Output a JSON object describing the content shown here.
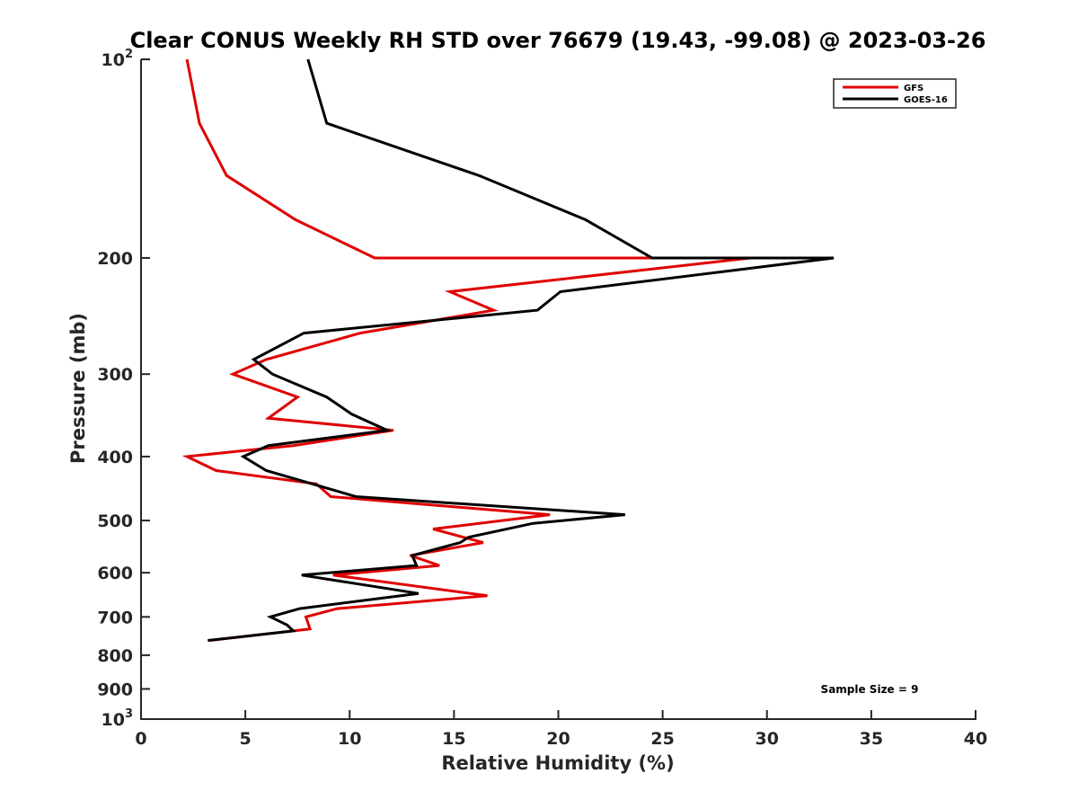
{
  "chart_data": {
    "type": "line",
    "title": "Clear CONUS Weekly RH STD over 76679 (19.43, -99.08) @ 2023-03-26",
    "xlabel": "Relative Humidity (%)",
    "ylabel": "Pressure (mb)",
    "xlim": [
      0,
      40
    ],
    "ylim": [
      100,
      1000
    ],
    "y_scale": "log",
    "y_reversed": true,
    "x_ticks": [
      "0",
      "5",
      "10",
      "15",
      "20",
      "25",
      "30",
      "35",
      "40"
    ],
    "y_ticks": [
      {
        "value": 100,
        "base": "10",
        "exp": "2"
      },
      {
        "value": 200,
        "label": "200"
      },
      {
        "value": 300,
        "label": "300"
      },
      {
        "value": 400,
        "label": "400"
      },
      {
        "value": 500,
        "label": "500"
      },
      {
        "value": 600,
        "label": "600"
      },
      {
        "value": 700,
        "label": "700"
      },
      {
        "value": 800,
        "label": "800"
      },
      {
        "value": 900,
        "label": "900"
      },
      {
        "value": 1000,
        "base": "10",
        "exp": "3"
      }
    ],
    "grid": false,
    "legend_position": "top-right",
    "annotation": "Sample Size = 9",
    "series": [
      {
        "name": "GFS",
        "color": "#e00000",
        "points": [
          [
            2.2,
            100
          ],
          [
            2.8,
            125
          ],
          [
            4.1,
            150
          ],
          [
            7.4,
            175
          ],
          [
            11.2,
            200
          ],
          [
            29.2,
            200
          ],
          [
            14.8,
            225
          ],
          [
            16.9,
            240
          ],
          [
            10.5,
            260
          ],
          [
            6.0,
            285
          ],
          [
            4.4,
            300
          ],
          [
            7.5,
            325
          ],
          [
            6.1,
            350
          ],
          [
            12.1,
            365
          ],
          [
            7.3,
            385
          ],
          [
            2.2,
            400
          ],
          [
            3.6,
            420
          ],
          [
            8.4,
            440
          ],
          [
            9.1,
            460
          ],
          [
            19.6,
            490
          ],
          [
            14.0,
            515
          ],
          [
            16.4,
            540
          ],
          [
            12.9,
            565
          ],
          [
            14.3,
            585
          ],
          [
            9.2,
            605
          ],
          [
            16.6,
            650
          ],
          [
            9.4,
            680
          ],
          [
            7.9,
            700
          ],
          [
            8.1,
            730
          ],
          [
            3.3,
            760
          ]
        ]
      },
      {
        "name": "GOES-16",
        "color": "#000000",
        "points": [
          [
            8.0,
            100
          ],
          [
            8.9,
            125
          ],
          [
            16.2,
            150
          ],
          [
            21.3,
            175
          ],
          [
            24.5,
            200
          ],
          [
            33.2,
            200
          ],
          [
            20.1,
            225
          ],
          [
            19.0,
            240
          ],
          [
            7.8,
            260
          ],
          [
            5.4,
            285
          ],
          [
            6.3,
            300
          ],
          [
            8.9,
            325
          ],
          [
            10.1,
            345
          ],
          [
            11.8,
            365
          ],
          [
            6.1,
            385
          ],
          [
            4.9,
            400
          ],
          [
            6.0,
            420
          ],
          [
            10.3,
            460
          ],
          [
            23.2,
            490
          ],
          [
            18.8,
            505
          ],
          [
            15.7,
            530
          ],
          [
            15.3,
            540
          ],
          [
            13.0,
            565
          ],
          [
            13.2,
            585
          ],
          [
            7.7,
            605
          ],
          [
            13.3,
            645
          ],
          [
            7.6,
            680
          ],
          [
            6.2,
            700
          ],
          [
            7.0,
            720
          ],
          [
            7.3,
            735
          ],
          [
            3.2,
            760
          ]
        ]
      }
    ]
  }
}
